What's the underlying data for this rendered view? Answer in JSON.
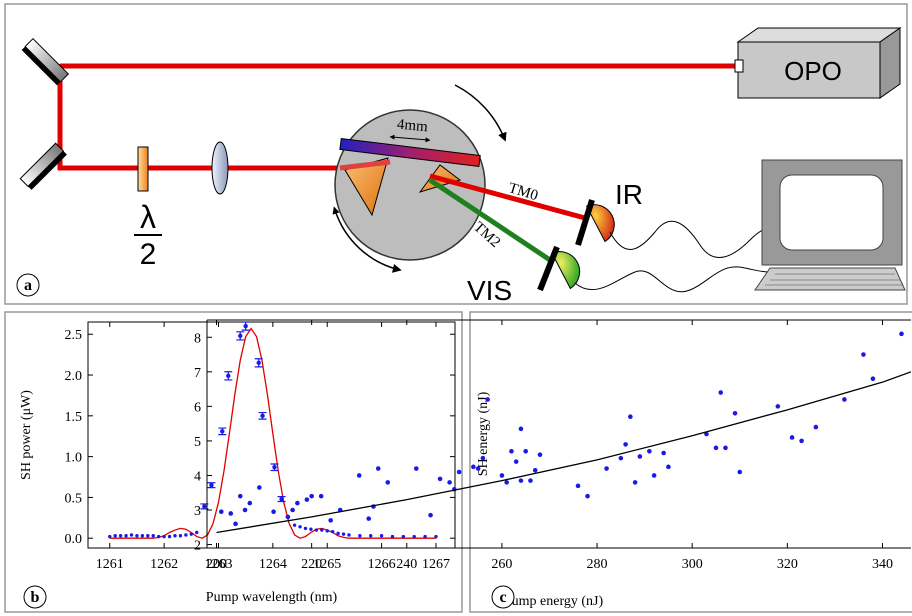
{
  "diagram": {
    "panel_label": "a",
    "source": "OPO",
    "scale": "4mm",
    "beam_ir": "TM0",
    "beam_vis": "TM2",
    "detector_ir": "IR",
    "detector_vis": "VIS",
    "waveplate": {
      "symbol": "λ",
      "denominator": "2"
    }
  },
  "chart_data": [
    {
      "type": "scatter",
      "panel_label": "b",
      "xlabel": "Pump wavelength (nm)",
      "ylabel": "SH power (μW)",
      "xlim": [
        1260.6,
        1267.35
      ],
      "ylim": [
        -0.12,
        2.65
      ],
      "xticks": [
        1261,
        1262,
        1263,
        1264,
        1265,
        1266,
        1267
      ],
      "yticks": [
        {
          "value": 0,
          "label": "0.0"
        },
        {
          "value": 0.5,
          "label": "0.5"
        },
        {
          "value": 1,
          "label": "1.0"
        },
        {
          "value": 1.5,
          "label": "1.5"
        },
        {
          "value": 2,
          "label": "2.0"
        },
        {
          "value": 2.5,
          "label": "2.5"
        }
      ],
      "series": [
        {
          "type": "line",
          "color": "#e00000",
          "x": [
            1261.0,
            1261.8,
            1261.9,
            1262.0,
            1262.1,
            1262.2,
            1262.3,
            1262.4,
            1262.5,
            1262.6,
            1262.7,
            1262.8,
            1262.9,
            1263.0,
            1263.1,
            1263.2,
            1263.3,
            1263.4,
            1263.5,
            1263.6,
            1263.7,
            1263.8,
            1263.9,
            1264.0,
            1264.1,
            1264.2,
            1264.3,
            1264.4,
            1264.5,
            1264.6,
            1264.7,
            1264.8,
            1264.9,
            1265.0,
            1265.1,
            1265.2,
            1265.3,
            1265.4,
            1267.0
          ],
          "values": [
            0.0,
            0.0,
            0.01,
            0.03,
            0.07,
            0.1,
            0.12,
            0.11,
            0.07,
            0.02,
            0.0,
            0.04,
            0.18,
            0.44,
            0.82,
            1.28,
            1.76,
            2.18,
            2.47,
            2.57,
            2.47,
            2.18,
            1.76,
            1.28,
            0.82,
            0.44,
            0.18,
            0.04,
            0.0,
            0.02,
            0.07,
            0.11,
            0.12,
            0.1,
            0.07,
            0.03,
            0.01,
            0.0,
            0.0
          ]
        },
        {
          "type": "scatter",
          "color": "#1a1ae6",
          "x": [
            1261.0,
            1261.1,
            1261.2,
            1261.3,
            1261.4,
            1261.5,
            1261.6,
            1261.7,
            1261.8,
            1261.9,
            1262.0,
            1262.1,
            1262.2,
            1262.3,
            1262.4,
            1262.5,
            1262.6,
            1264.4,
            1264.5,
            1264.6,
            1264.7,
            1264.8,
            1264.9,
            1265.0,
            1265.1,
            1265.2,
            1265.3,
            1265.4,
            1265.6,
            1265.8,
            1266.0,
            1266.2,
            1266.4,
            1266.6,
            1266.8,
            1267.0
          ],
          "values": [
            0.02,
            0.03,
            0.03,
            0.03,
            0.04,
            0.03,
            0.03,
            0.03,
            0.03,
            0.02,
            0.02,
            0.02,
            0.03,
            0.03,
            0.04,
            0.05,
            0.07,
            0.16,
            0.14,
            0.12,
            0.11,
            0.1,
            0.1,
            0.09,
            0.08,
            0.06,
            0.05,
            0.04,
            0.03,
            0.03,
            0.03,
            0.02,
            0.02,
            0.02,
            0.02,
            0.02
          ]
        },
        {
          "type": "scatter",
          "color": "#1a1ae6",
          "x": [
            1262.74,
            1262.87,
            1263.07,
            1263.18,
            1263.4,
            1263.5,
            1263.74,
            1263.81,
            1264.03,
            1264.16
          ],
          "values": [
            0.39,
            0.65,
            1.31,
            1.99,
            2.48,
            2.6,
            2.15,
            1.5,
            0.87,
            0.48
          ],
          "errors": [
            0.03,
            0.03,
            0.04,
            0.05,
            0.05,
            0.05,
            0.05,
            0.04,
            0.04,
            0.03
          ]
        }
      ]
    },
    {
      "type": "scatter",
      "panel_label": "c",
      "xlabel": "Pump energy (nJ)",
      "ylabel": "SH energy (nJ)",
      "xlim": [
        198,
        346
      ],
      "ylim": [
        1.9,
        8.5
      ],
      "xticks": [
        200,
        220,
        240,
        260,
        280,
        300,
        320,
        340
      ],
      "yticks": [
        2,
        3,
        4,
        5,
        6,
        7,
        8
      ],
      "series": [
        {
          "type": "scatter",
          "color": "#1a1ae6",
          "x": [
            201,
            203,
            204,
            205,
            206,
            207,
            209,
            212,
            215,
            216,
            217,
            219,
            220,
            222,
            224,
            226,
            230,
            232,
            233,
            234,
            236,
            242,
            245,
            247,
            249,
            250,
            251,
            254,
            255,
            256,
            257,
            260,
            261,
            262,
            263,
            264,
            264,
            265,
            266,
            267,
            268,
            276,
            278,
            282,
            285,
            286,
            287,
            288,
            289,
            291,
            292,
            294,
            295,
            303,
            305,
            306,
            307,
            309,
            310,
            318,
            321,
            323,
            326,
            332,
            336,
            338,
            344
          ],
          "values": [
            2.95,
            2.9,
            2.6,
            3.4,
            3.0,
            3.2,
            3.65,
            2.95,
            2.8,
            3.0,
            3.2,
            3.3,
            3.4,
            3.4,
            2.7,
            3.0,
            4.0,
            2.75,
            3.1,
            4.2,
            3.8,
            4.2,
            2.85,
            3.9,
            3.8,
            3.6,
            4.1,
            4.25,
            4.2,
            4.5,
            6.2,
            4.0,
            3.8,
            4.7,
            4.4,
            3.85,
            5.35,
            4.7,
            3.85,
            4.15,
            4.6,
            3.7,
            3.4,
            4.2,
            4.5,
            4.9,
            5.7,
            3.8,
            4.55,
            4.7,
            4.0,
            4.65,
            4.25,
            5.2,
            4.8,
            6.4,
            4.8,
            5.8,
            4.1,
            6.0,
            5.1,
            5.0,
            5.4,
            6.2,
            7.5,
            6.8,
            8.1
          ]
        },
        {
          "type": "line",
          "color": "#000000",
          "x": [
            200,
            220,
            240,
            260,
            280,
            300,
            320,
            340,
            346
          ],
          "values": [
            2.35,
            2.8,
            3.3,
            3.85,
            4.45,
            5.15,
            5.9,
            6.7,
            7.0
          ]
        }
      ]
    }
  ]
}
